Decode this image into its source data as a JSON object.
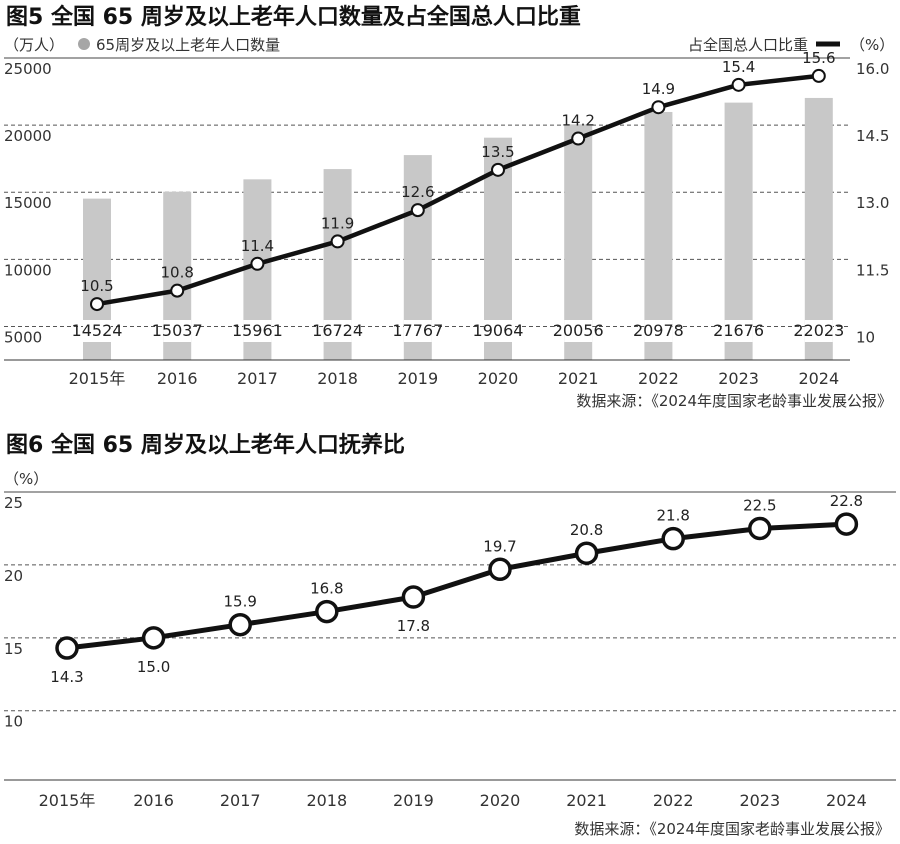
{
  "chart_data": [
    {
      "type": "bar",
      "title": "图5 全国 65 周岁及以上老年人口数量及占全国总人口比重",
      "left_unit": "（万人）",
      "right_unit": "（%）",
      "categories": [
        "2015年",
        "2016",
        "2017",
        "2018",
        "2019",
        "2020",
        "2021",
        "2022",
        "2023",
        "2024"
      ],
      "series": [
        {
          "name": "65周岁及以上老年人口数量",
          "type": "bar",
          "axis": "left",
          "values": [
            14524,
            15037,
            15961,
            16724,
            17767,
            19064,
            20056,
            20978,
            21676,
            22023
          ]
        },
        {
          "name": "占全国总人口比重",
          "type": "line",
          "axis": "right",
          "values": [
            10.5,
            10.8,
            11.4,
            11.9,
            12.6,
            13.5,
            14.2,
            14.9,
            15.4,
            15.6
          ]
        }
      ],
      "left_ticks": [
        "25000",
        "20000",
        "15000",
        "10000",
        "5000"
      ],
      "right_ticks": [
        "16.0",
        "14.5",
        "13.0",
        "11.5",
        "10"
      ],
      "ylim_left": [
        2500,
        25000
      ],
      "ylim_right": [
        9.25,
        16.0
      ],
      "source": "数据来源：《2024年度国家老龄事业发展公报》"
    },
    {
      "type": "line",
      "title": "图6 全国 65 周岁及以上老年人口抚养比",
      "unit": "（%）",
      "categories": [
        "2015年",
        "2016",
        "2017",
        "2018",
        "2019",
        "2020",
        "2021",
        "2022",
        "2023",
        "2024"
      ],
      "series": [
        {
          "name": "老年人口抚养比",
          "values": [
            14.3,
            15.0,
            15.9,
            16.8,
            17.8,
            19.7,
            20.8,
            21.8,
            22.5,
            22.8
          ]
        }
      ],
      "y_ticks": [
        "25",
        "20",
        "15",
        "10"
      ],
      "ylim": [
        5.25,
        25
      ],
      "source": "数据来源：《2024年度国家老龄事业发展公报》"
    }
  ]
}
